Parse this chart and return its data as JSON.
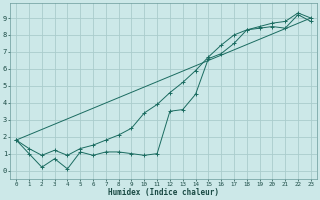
{
  "xlabel": "Humidex (Indice chaleur)",
  "bg_color": "#cce8e8",
  "grid_color": "#aacccc",
  "line_color": "#1a6b60",
  "xlim": [
    -0.5,
    23.5
  ],
  "ylim": [
    -0.5,
    9.9
  ],
  "xticks": [
    0,
    1,
    2,
    3,
    4,
    5,
    6,
    7,
    8,
    9,
    10,
    11,
    12,
    13,
    14,
    15,
    16,
    17,
    18,
    19,
    20,
    21,
    22,
    23
  ],
  "yticks": [
    0,
    1,
    2,
    3,
    4,
    5,
    6,
    7,
    8,
    9
  ],
  "line1_x": [
    0,
    1,
    2,
    3,
    4,
    5,
    6,
    7,
    8,
    9,
    10,
    11,
    12,
    13,
    14,
    15,
    16,
    17,
    18,
    19,
    20,
    21,
    22,
    23
  ],
  "line1_y": [
    1.8,
    1.0,
    0.2,
    0.7,
    0.1,
    1.1,
    0.9,
    1.1,
    1.1,
    1.0,
    0.9,
    1.0,
    3.5,
    3.6,
    4.5,
    6.6,
    6.9,
    7.5,
    8.3,
    8.4,
    8.5,
    8.4,
    9.2,
    8.8
  ],
  "line2_x": [
    0,
    1,
    2,
    3,
    4,
    5,
    6,
    7,
    8,
    9,
    10,
    11,
    12,
    13,
    14,
    15,
    16,
    17,
    18,
    19,
    20,
    21,
    22,
    23
  ],
  "line2_y": [
    1.8,
    1.3,
    0.9,
    1.2,
    0.9,
    1.3,
    1.5,
    1.8,
    2.1,
    2.5,
    3.4,
    3.9,
    4.6,
    5.2,
    5.9,
    6.7,
    7.4,
    8.0,
    8.3,
    8.5,
    8.7,
    8.8,
    9.3,
    9.0
  ],
  "line3_x": [
    0,
    23
  ],
  "line3_y": [
    1.8,
    9.0
  ]
}
